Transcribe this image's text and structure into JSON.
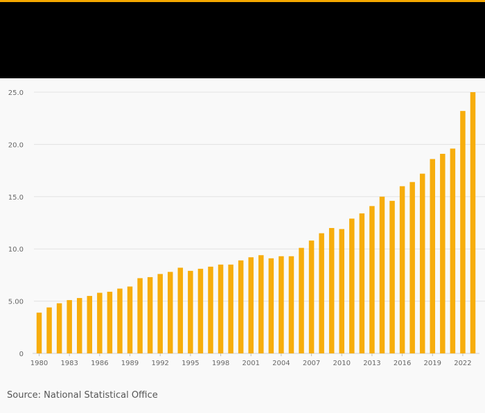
{
  "source_label": "Source: National Statistical Office",
  "colors": {
    "accent": "#f5a800",
    "bar": "#f7ad0c",
    "header": "#000000",
    "grid": "#e2e2e2",
    "axis_text": "#666666"
  },
  "chart_data": {
    "type": "bar",
    "title": "",
    "xlabel": "",
    "ylabel": "",
    "ylim": [
      0,
      25
    ],
    "y_ticks": [
      0,
      5,
      10,
      15,
      20,
      25
    ],
    "y_tick_labels": [
      "0",
      "5.00",
      "10.0",
      "15.0",
      "20.0",
      "25.0"
    ],
    "grid": true,
    "categories": [
      "1980",
      "1981",
      "1982",
      "1983",
      "1984",
      "1985",
      "1986",
      "1987",
      "1988",
      "1989",
      "1990",
      "1991",
      "1992",
      "1993",
      "1994",
      "1995",
      "1996",
      "1997",
      "1998",
      "1999",
      "2000",
      "2001",
      "2002",
      "2003",
      "2004",
      "2005",
      "2006",
      "2007",
      "2008",
      "2009",
      "2010",
      "2011",
      "2012",
      "2013",
      "2014",
      "2015",
      "2016",
      "2017",
      "2018",
      "2019",
      "2020",
      "2021",
      "2022",
      "2023"
    ],
    "x_tick_labels": [
      "1980",
      "1983",
      "1986",
      "1989",
      "1992",
      "1995",
      "1998",
      "2001",
      "2004",
      "2007",
      "2010",
      "2013",
      "2016",
      "2019",
      "2022"
    ],
    "values": [
      3.9,
      4.4,
      4.8,
      5.1,
      5.3,
      5.5,
      5.8,
      5.9,
      6.2,
      6.4,
      7.2,
      7.3,
      7.6,
      7.8,
      8.2,
      7.9,
      8.1,
      8.3,
      8.5,
      8.5,
      8.9,
      9.2,
      9.4,
      9.1,
      9.3,
      9.3,
      10.1,
      10.8,
      11.5,
      12.0,
      11.9,
      12.9,
      13.4,
      14.1,
      15.0,
      14.6,
      16.0,
      16.4,
      17.2,
      18.6,
      19.1,
      19.6,
      23.2,
      25.0
    ]
  }
}
